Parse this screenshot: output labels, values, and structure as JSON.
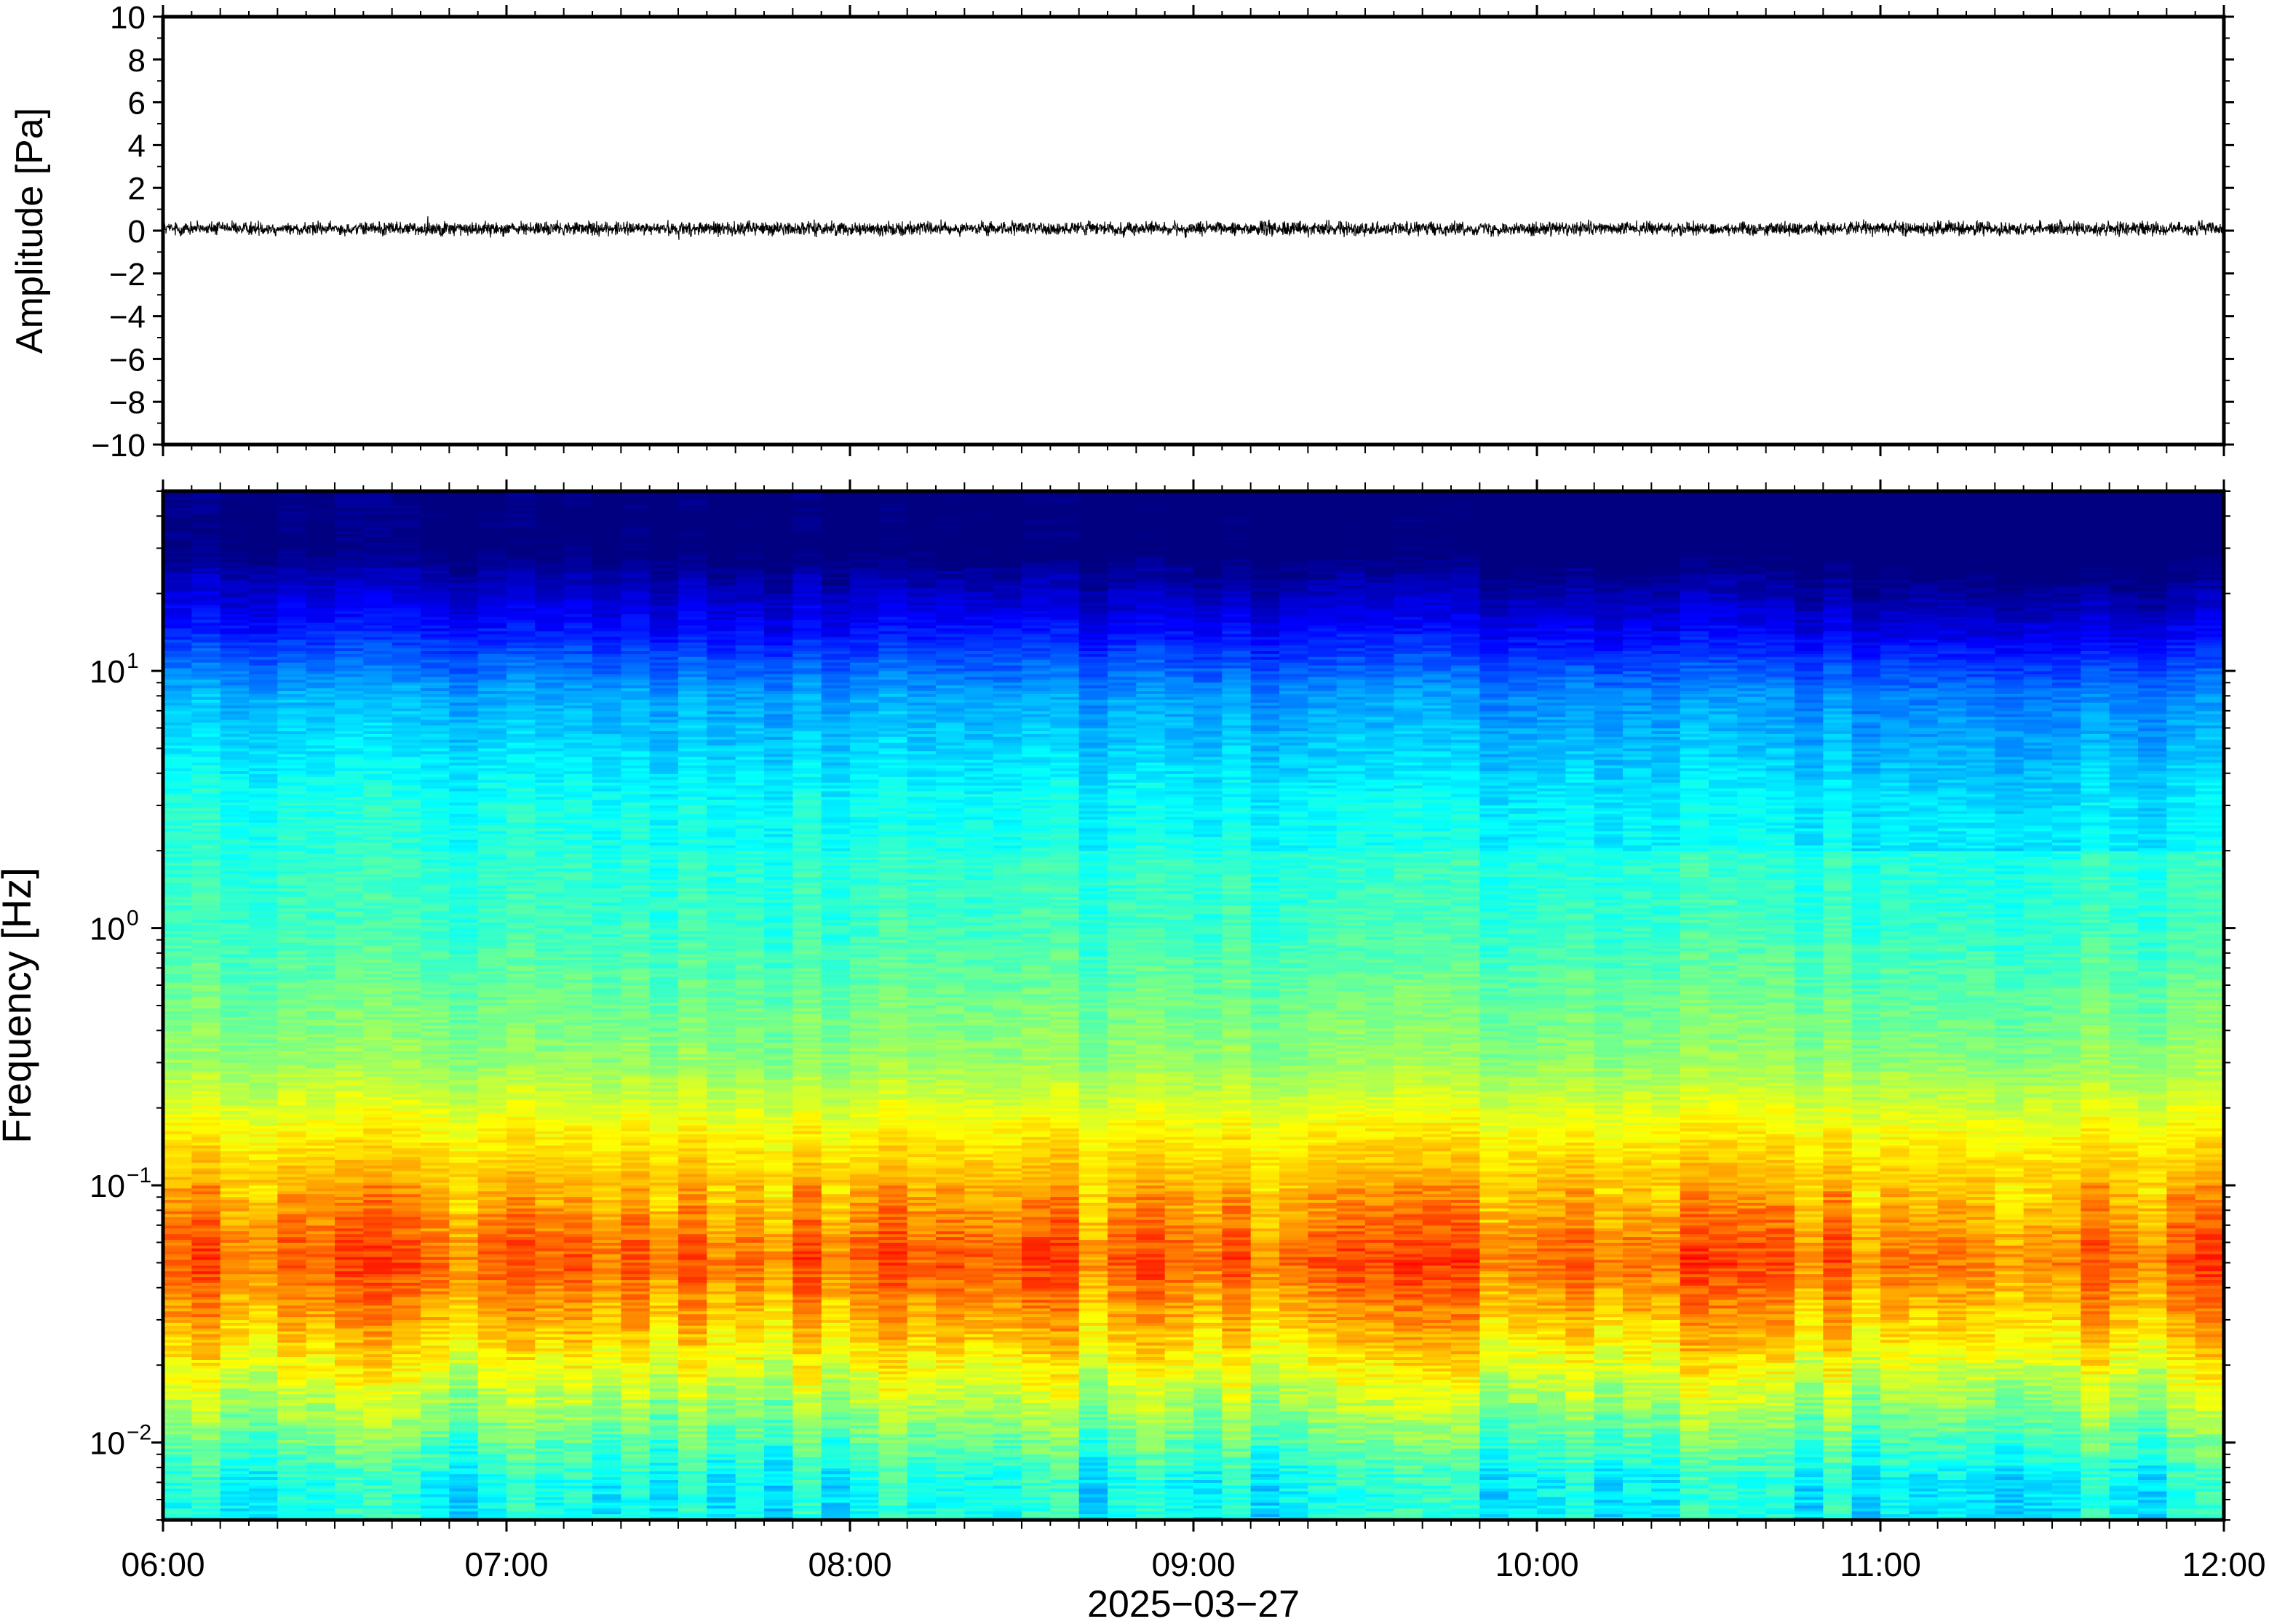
{
  "chart_data": [
    {
      "type": "line",
      "name": "waveform",
      "ylabel": "Amplitude [Pa]",
      "ylim": [
        -10,
        10
      ],
      "yticks": [
        10,
        8,
        6,
        4,
        2,
        0,
        -2,
        -4,
        -6,
        -8,
        -10
      ],
      "ytick_labels": [
        "10",
        "8",
        "6",
        "4",
        "2",
        "0",
        "−2",
        "−4",
        "−6",
        "−8",
        "−10"
      ],
      "x_range": [
        "06:00",
        "12:00"
      ],
      "noise_amplitude": 0.35,
      "y_mean": 0.1,
      "grid": false
    },
    {
      "type": "heatmap",
      "name": "spectrogram",
      "ylabel": "Frequency [Hz]",
      "xlabel": "2025−03−27",
      "yscale": "log",
      "ylim": [
        0.005,
        50
      ],
      "yticks": [
        {
          "value": 10,
          "base": "10",
          "exp": "1"
        },
        {
          "value": 1,
          "base": "10",
          "exp": "0"
        },
        {
          "value": 0.1,
          "base": "10",
          "exp": "−1"
        },
        {
          "value": 0.01,
          "base": "10",
          "exp": "−2"
        }
      ],
      "xticks": [
        "06:00",
        "07:00",
        "08:00",
        "09:00",
        "10:00",
        "11:00",
        "12:00"
      ],
      "colormap": "jet",
      "bands": [
        {
          "freq": 30,
          "level": 0.0
        },
        {
          "freq": 15,
          "level": 0.14
        },
        {
          "freq": 8,
          "level": 0.3
        },
        {
          "freq": 3,
          "level": 0.4
        },
        {
          "freq": 1,
          "level": 0.43
        },
        {
          "freq": 0.3,
          "level": 0.52
        },
        {
          "freq": 0.15,
          "level": 0.64
        },
        {
          "freq": 0.05,
          "level": 0.78
        },
        {
          "freq": 0.025,
          "level": 0.66
        },
        {
          "freq": 0.012,
          "level": 0.5
        },
        {
          "freq": 0.007,
          "level": 0.38
        }
      ],
      "grid": false
    }
  ]
}
